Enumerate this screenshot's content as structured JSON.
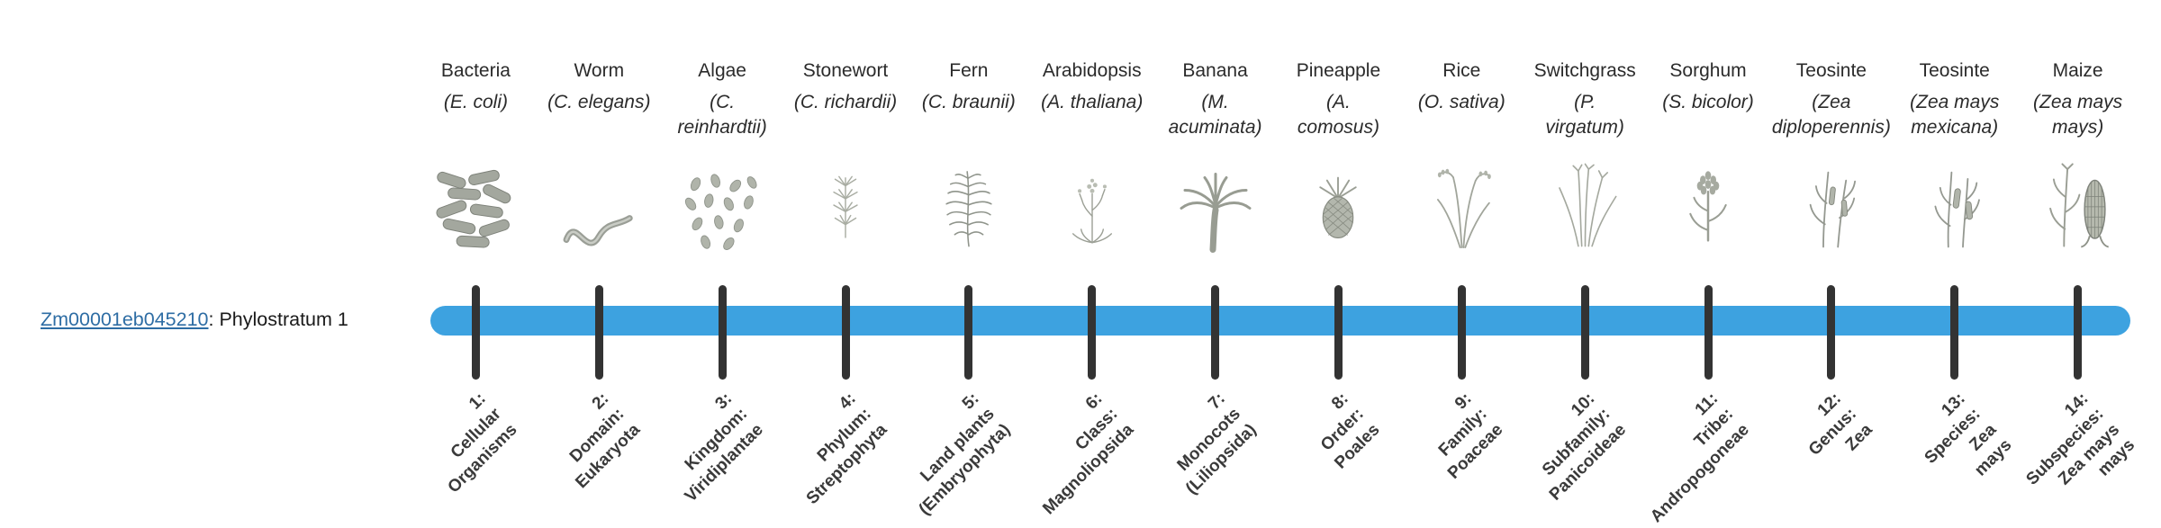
{
  "gene": {
    "id": "Zm00001eb045210",
    "suffix": ": Phylostratum 1",
    "link_color": "#2e6da4"
  },
  "timeline": {
    "bar_color": "#3da2e0",
    "tick_color": "#333333"
  },
  "strata": [
    {
      "organism": "Bacteria",
      "scientific": "(E. coli)",
      "icon": "bacteria-icon",
      "label": "1:\nCellular\nOrganisms"
    },
    {
      "organism": "Worm",
      "scientific": "(C. elegans)",
      "icon": "worm-icon",
      "label": "2:\nDomain:\nEukaryota"
    },
    {
      "organism": "Algae",
      "scientific": "(C.\nreinhardtii)",
      "icon": "algae-icon",
      "label": "3:\nKingdom:\nViridiplantae"
    },
    {
      "organism": "Stonewort",
      "scientific": "(C. richardii)",
      "icon": "stonewort-icon",
      "label": "4:\nPhylum:\nStreptophyta"
    },
    {
      "organism": "Fern",
      "scientific": "(C. braunii)",
      "icon": "fern-icon",
      "label": "5:\nLand plants\n(Embryophyta)"
    },
    {
      "organism": "Arabidopsis",
      "scientific": "(A. thaliana)",
      "icon": "arabidopsis-icon",
      "label": "6:\nClass:\nMagnoliopsida"
    },
    {
      "organism": "Banana",
      "scientific": "(M.\nacuminata)",
      "icon": "banana-icon",
      "label": "7:\nMonocots\n(Liliopsida)"
    },
    {
      "organism": "Pineapple",
      "scientific": "(A.\ncomosus)",
      "icon": "pineapple-icon",
      "label": "8:\nOrder:\nPoales"
    },
    {
      "organism": "Rice",
      "scientific": "(O. sativa)",
      "icon": "rice-icon",
      "label": "9:\nFamily:\nPoaceae"
    },
    {
      "organism": "Switchgrass",
      "scientific": "(P.\nvirgatum)",
      "icon": "switchgrass-icon",
      "label": "10:\nSubfamily:\nPanicoideae"
    },
    {
      "organism": "Sorghum",
      "scientific": "(S. bicolor)",
      "icon": "sorghum-icon",
      "label": "11:\nTribe:\nAndropogoneae"
    },
    {
      "organism": "Teosinte",
      "scientific": "(Zea\ndiploperennis)",
      "icon": "teosinte-diploperennis-icon",
      "label": "12:\nGenus:\nZea"
    },
    {
      "organism": "Teosinte",
      "scientific": "(Zea mays\nmexicana)",
      "icon": "teosinte-mexicana-icon",
      "label": "13:\nSpecies:\nZea\nmays"
    },
    {
      "organism": "Maize",
      "scientific": "(Zea mays\nmays)",
      "icon": "maize-icon",
      "label": "14:\nSubspecies:\nZea mays\nmays"
    }
  ]
}
